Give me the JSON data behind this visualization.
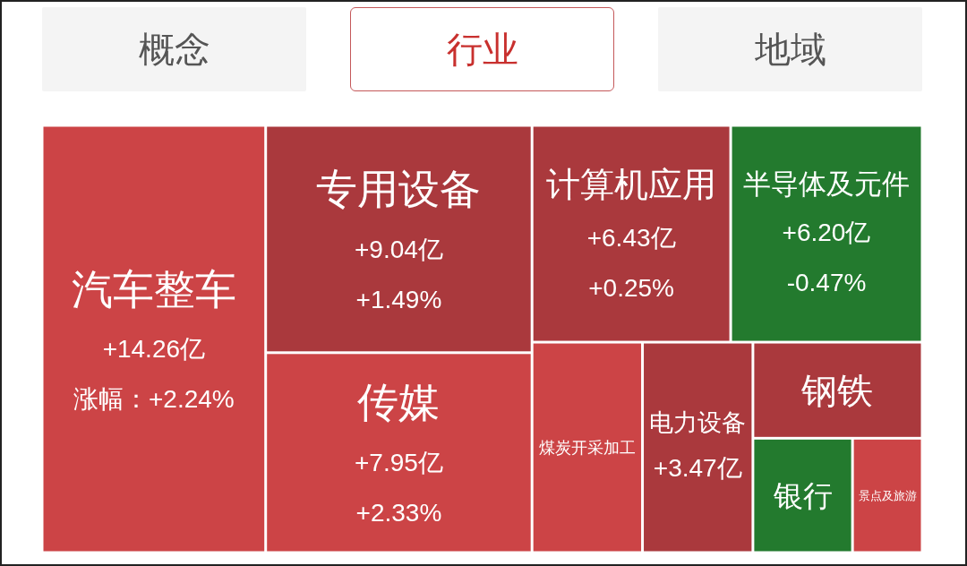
{
  "chart_data": [
    {
      "type": "other",
      "categories": [
        "概念",
        "行业",
        "地域"
      ],
      "colors": [
        "#f4f4f4",
        "#ffffff",
        "#f4f4f4"
      ]
    },
    {
      "type": "other",
      "categories": [
        "汽车整车",
        "专用设备",
        "传媒",
        "计算机应用",
        "半导体及元件",
        "煤炭开采加工",
        "电力设备",
        "钢铁",
        "银行",
        "景点及旅游"
      ],
      "series": [
        {
          "values": [
            14.26,
            9.04,
            7.95,
            6.43,
            6.2,
            null,
            3.47,
            null,
            null,
            null
          ],
          "value_labels": [
            "+14.26亿",
            "+9.04亿",
            "+7.95亿",
            "+6.43亿",
            "+6.20亿",
            null,
            "+3.47亿",
            null,
            null,
            null
          ],
          "colors": [
            "#cc4446",
            "#aa393d",
            "#cc4446",
            "#aa393d",
            "#237a2e",
            "#cc4446",
            "#aa393d",
            "#aa393d",
            "#237a2e",
            "#cc4446"
          ]
        },
        {
          "values": [
            2.24,
            1.49,
            2.33,
            0.25,
            -0.47,
            null,
            null,
            null,
            null,
            null
          ],
          "value_labels": [
            "涨幅：+2.24%",
            "+1.49%",
            "+2.33%",
            "+0.25%",
            "-0.47%",
            null,
            null,
            null,
            null,
            null
          ]
        }
      ]
    }
  ]
}
